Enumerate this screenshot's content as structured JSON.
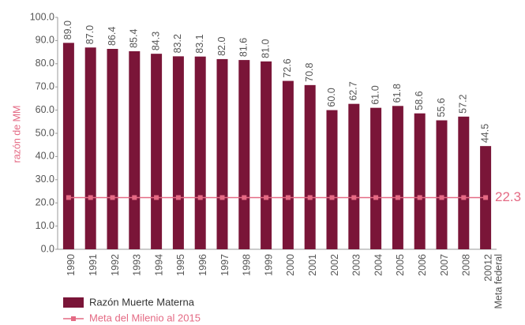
{
  "chart_data": {
    "type": "bar",
    "y_label": "razón de MM",
    "categories": [
      "1990",
      "1991",
      "1992",
      "1993",
      "1994",
      "1995",
      "1996",
      "1997",
      "1998",
      "1999",
      "2000",
      "2001",
      "2002",
      "2003",
      "2004",
      "2005",
      "2006",
      "2007",
      "2008",
      "20012"
    ],
    "series": [
      {
        "name": "Razón Muerte Materna",
        "color": "#7a1538",
        "type": "bar",
        "values": [
          89.0,
          87.0,
          86.4,
          85.4,
          84.3,
          83.2,
          83.1,
          82.0,
          81.6,
          81.0,
          72.6,
          70.8,
          60.0,
          62.7,
          61.0,
          61.8,
          58.6,
          55.6,
          57.2,
          44.5
        ],
        "value_labels": [
          "89.0",
          "87.0",
          "86.4",
          "85.4",
          "84.3",
          "83.2",
          "83.1",
          "82.0",
          "81.6",
          "81.0",
          "72.6",
          "70.8",
          "60.0",
          "62.7",
          "61.0",
          "61.8",
          "58.6",
          "55.6",
          "57.2",
          "44.5"
        ]
      },
      {
        "name": "Meta del Milenio al 2015",
        "color": "#e46a84",
        "type": "line",
        "values": [
          22.3,
          22.3,
          22.3,
          22.3,
          22.3,
          22.3,
          22.3,
          22.3,
          22.3,
          22.3,
          22.3,
          22.3,
          22.3,
          22.3,
          22.3,
          22.3,
          22.3,
          22.3,
          22.3,
          22.3
        ]
      }
    ],
    "annotations": [
      {
        "text": "22.3",
        "value": 22.3
      },
      {
        "text": "Meta federal"
      }
    ],
    "ylim": [
      0,
      100
    ],
    "yticks": [
      {
        "value": 0,
        "label": "0.0"
      },
      {
        "value": 10,
        "label": "10.0"
      },
      {
        "value": 20,
        "label": "20.0"
      },
      {
        "value": 30,
        "label": "30.0"
      },
      {
        "value": 40,
        "label": "40.0"
      },
      {
        "value": 50,
        "label": "50.0"
      },
      {
        "value": 60,
        "label": "60.0"
      },
      {
        "value": 70,
        "label": "70.0"
      },
      {
        "value": 80,
        "label": "80.0"
      },
      {
        "value": 90,
        "label": "90.0"
      },
      {
        "value": 100,
        "label": "100.0"
      }
    ],
    "grid": false,
    "legend": "bottom-left"
  }
}
